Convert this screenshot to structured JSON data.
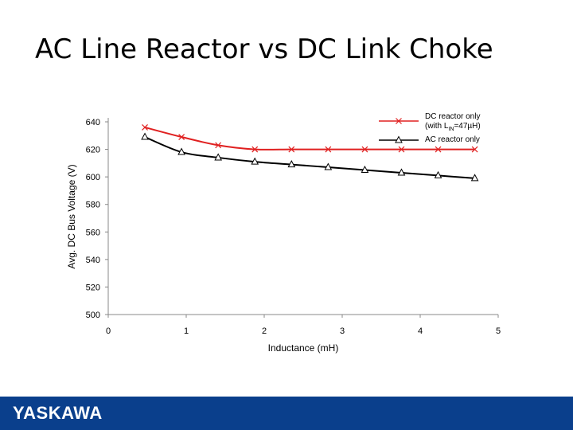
{
  "slide": {
    "title": "AC Line Reactor vs DC Link Choke"
  },
  "footer": {
    "logo_text": "YASKAWA",
    "bar_color": "#0a3f8c"
  },
  "chart_data": {
    "type": "line",
    "title": "",
    "xlabel": "Inductance (mH)",
    "ylabel": "Avg. DC Bus Voltage (V)",
    "xlim": [
      0,
      5
    ],
    "ylim": [
      500,
      640
    ],
    "xticks": [
      0,
      1,
      2,
      3,
      4,
      5
    ],
    "yticks": [
      500,
      520,
      540,
      560,
      580,
      600,
      620,
      640
    ],
    "grid": false,
    "legend_position": "top-right",
    "series": [
      {
        "name": "DC reactor only (with L_IN=47µH)",
        "legend_line1": "DC reactor only",
        "legend_line2_pre": "(with L",
        "legend_line2_sub": "IN",
        "legend_line2_post": "=47µH)",
        "color": "#e02020",
        "marker": "x",
        "x": [
          0.47,
          0.94,
          1.41,
          1.88,
          2.35,
          2.82,
          3.29,
          3.76,
          4.23,
          4.7
        ],
        "y": [
          636,
          629,
          623,
          620,
          620,
          620,
          620,
          620,
          620,
          620
        ]
      },
      {
        "name": "AC reactor only",
        "legend_line1": "AC reactor only",
        "color": "#000000",
        "marker": "triangle",
        "x": [
          0.47,
          0.94,
          1.41,
          1.88,
          2.35,
          2.82,
          3.29,
          3.76,
          4.23,
          4.7
        ],
        "y": [
          629,
          618,
          614,
          611,
          609,
          607,
          605,
          603,
          601,
          599
        ]
      }
    ]
  }
}
